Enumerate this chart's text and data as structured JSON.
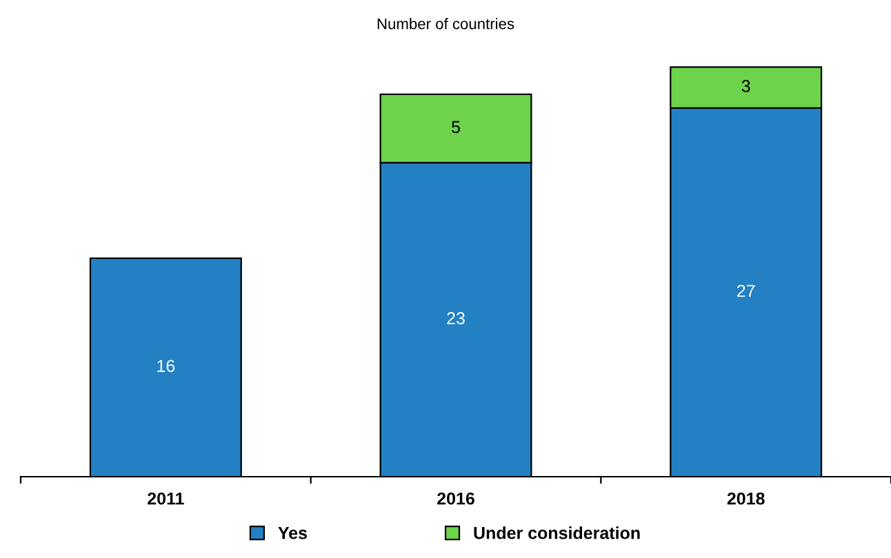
{
  "chart_data": {
    "type": "bar",
    "stacked": true,
    "ylabel": "Number of countries",
    "categories": [
      "2011",
      "2016",
      "2018"
    ],
    "series": [
      {
        "name": "Yes",
        "color": "#2280c3",
        "values": [
          16,
          23,
          27
        ]
      },
      {
        "name": "Under consideration",
        "color": "#6dd34a",
        "values": [
          null,
          5,
          3
        ]
      }
    ],
    "data_labels": true,
    "legend": "bottom",
    "grid": false,
    "tick_labels": "x"
  }
}
